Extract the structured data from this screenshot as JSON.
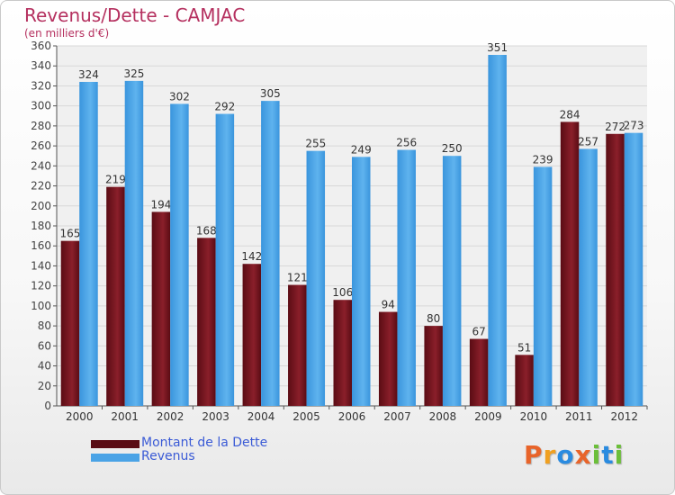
{
  "chart_data": {
    "type": "bar",
    "title": "Revenus/Dette - CAMJAC",
    "subtitle": "(en milliers d'€)",
    "categories": [
      "2000",
      "2001",
      "2002",
      "2003",
      "2004",
      "2005",
      "2006",
      "2007",
      "2008",
      "2009",
      "2010",
      "2011",
      "2012"
    ],
    "series": [
      {
        "name": "Montant de la Dette",
        "color": "#7a1420",
        "values": [
          165,
          219,
          194,
          168,
          142,
          121,
          106,
          94,
          80,
          67,
          51,
          284,
          272
        ]
      },
      {
        "name": "Revenus",
        "color": "#4aa3e6",
        "values": [
          324,
          325,
          302,
          292,
          305,
          255,
          249,
          256,
          250,
          351,
          239,
          257,
          273
        ]
      }
    ],
    "ylim": [
      0,
      360
    ],
    "yticks": [
      0,
      20,
      40,
      60,
      80,
      100,
      120,
      140,
      160,
      180,
      200,
      220,
      240,
      260,
      280,
      300,
      320,
      340,
      360
    ],
    "grid": true,
    "legend_position": "bottom-left"
  },
  "logo": {
    "text": "Proxiti",
    "colors": [
      "#e8642a",
      "#f0a020",
      "#2a8be0",
      "#e8642a",
      "#6cbf3a",
      "#2a8be0",
      "#6cbf3a"
    ]
  }
}
